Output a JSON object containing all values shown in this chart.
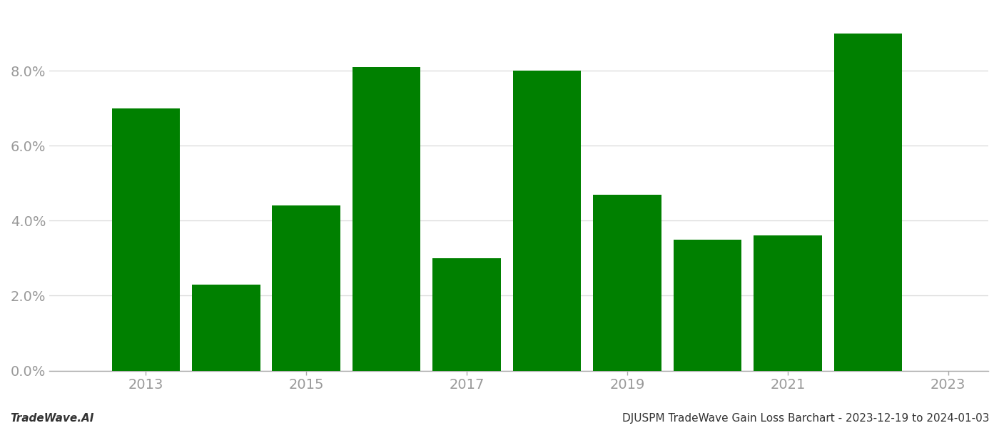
{
  "years": [
    2013,
    2014,
    2015,
    2016,
    2017,
    2018,
    2019,
    2020,
    2021,
    2022
  ],
  "values": [
    0.07,
    0.023,
    0.044,
    0.081,
    0.03,
    0.08,
    0.047,
    0.035,
    0.036,
    0.09
  ],
  "bar_color": "#008000",
  "background_color": "#ffffff",
  "footer_left": "TradeWave.AI",
  "footer_right": "DJUSPM TradeWave Gain Loss Barchart - 2023-12-19 to 2024-01-03",
  "footer_fontsize": 11,
  "tick_label_color": "#999999",
  "grid_color": "#dddddd",
  "ylim_min": 0.0,
  "ylim_max": 0.096,
  "ytick_values": [
    0.0,
    0.02,
    0.04,
    0.06,
    0.08
  ],
  "xlim_min": 2011.8,
  "xlim_max": 2023.5,
  "xtick_positions": [
    2013,
    2015,
    2017,
    2019,
    2021,
    2023
  ],
  "xtick_labels": [
    "2013",
    "2015",
    "2017",
    "2019",
    "2021",
    "2023"
  ],
  "bar_width": 0.85
}
